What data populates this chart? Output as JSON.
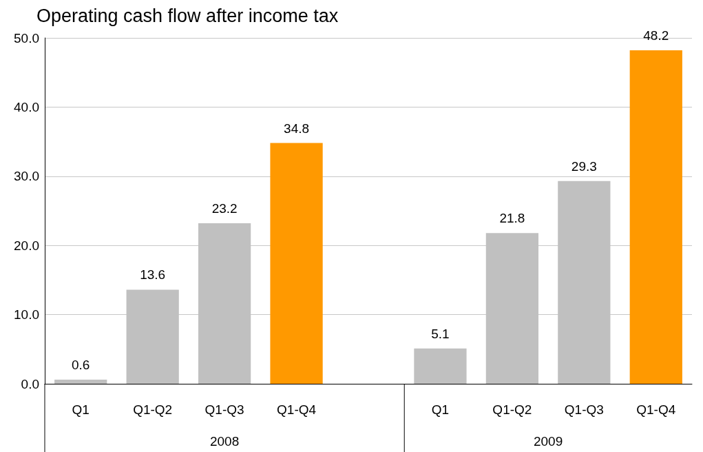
{
  "chart_data": {
    "type": "bar",
    "title": "Operating cash flow after income tax",
    "categories": [
      "Q1",
      "Q1-Q2",
      "Q1-Q3",
      "Q1-Q4",
      null,
      "Q1",
      "Q1-Q2",
      "Q1-Q3",
      "Q1-Q4"
    ],
    "values": [
      0.6,
      13.6,
      23.2,
      34.8,
      null,
      5.1,
      21.8,
      29.3,
      48.2
    ],
    "colors": [
      "#c0c0c0",
      "#c0c0c0",
      "#c0c0c0",
      "#ff9900",
      "#c0c0c0",
      "#c0c0c0",
      "#c0c0c0",
      "#c0c0c0",
      "#ff9900"
    ],
    "ylim": [
      0,
      50
    ],
    "yticks": [
      {
        "value": 0,
        "label": "0.0"
      },
      {
        "value": 10,
        "label": "10.0"
      },
      {
        "value": 20,
        "label": "20.0"
      },
      {
        "value": 30,
        "label": "30.0"
      },
      {
        "value": 40,
        "label": "40.0"
      },
      {
        "value": 50,
        "label": "50.0"
      }
    ],
    "grid": "y",
    "data_labels": true,
    "annotations": [
      "2008",
      "2009"
    ]
  }
}
